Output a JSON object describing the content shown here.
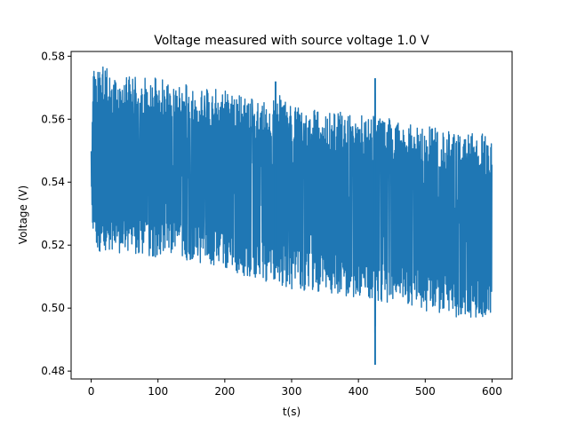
{
  "chart_data": {
    "type": "line",
    "title": "Voltage measured with source voltage 1.0 V",
    "xlabel": "t(s)",
    "ylabel": "Voltage (V)",
    "xlim": [
      -30,
      630
    ],
    "ylim": [
      0.4775,
      0.5815
    ],
    "xticks": [
      0,
      100,
      200,
      300,
      400,
      500,
      600
    ],
    "yticks": [
      0.48,
      0.5,
      0.52,
      0.54,
      0.56,
      0.58
    ],
    "ytick_labels": [
      "0.48",
      "0.50",
      "0.52",
      "0.54",
      "0.56",
      "0.58"
    ],
    "grid": false,
    "line_color": "#1f77b4",
    "series": [
      {
        "x": [
          0,
          1,
          2,
          3,
          5,
          10,
          15,
          25,
          50,
          100,
          150,
          200,
          250,
          275,
          276,
          300,
          350,
          400,
          424,
          425,
          426,
          427,
          450,
          500,
          550,
          600
        ],
        "upper_envelope": [
          0.552,
          0.545,
          0.575,
          0.576,
          0.577,
          0.576,
          0.577,
          0.576,
          0.574,
          0.573,
          0.571,
          0.569,
          0.566,
          0.566,
          0.572,
          0.564,
          0.563,
          0.562,
          0.561,
          0.573,
          0.562,
          0.561,
          0.56,
          0.558,
          0.556,
          0.555
        ],
        "lower_envelope": [
          0.537,
          0.537,
          0.518,
          0.518,
          0.518,
          0.518,
          0.518,
          0.517,
          0.517,
          0.516,
          0.515,
          0.512,
          0.509,
          0.508,
          0.508,
          0.506,
          0.505,
          0.503,
          0.502,
          0.482,
          0.502,
          0.502,
          0.501,
          0.499,
          0.497,
          0.497
        ]
      }
    ]
  }
}
